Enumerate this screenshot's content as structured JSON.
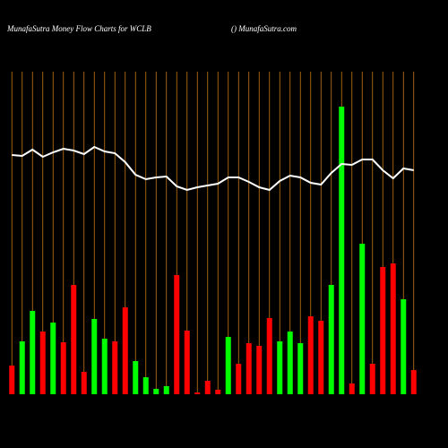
{
  "chart_data": {
    "type": "bar",
    "title": "MunafaSutra  Money Flow  Charts for WCLB",
    "subtitle": "() MunafaSutra.com",
    "ylim": [
      0,
      360
    ],
    "guide_color": "#c87814",
    "values": [
      32,
      59,
      93,
      70,
      80,
      58,
      122,
      25,
      84,
      62,
      59,
      97,
      37,
      19,
      6,
      9,
      133,
      71,
      2,
      15,
      5,
      64,
      34,
      57,
      54,
      85,
      59,
      70,
      57,
      87,
      82,
      122,
      321,
      12,
      168,
      34,
      142,
      146,
      106,
      27
    ],
    "colors": [
      "#ff0000",
      "#00ff00",
      "#00ff00",
      "#ff0000",
      "#00ff00",
      "#ff0000",
      "#ff0000",
      "#ff0000",
      "#00ff00",
      "#00ff00",
      "#ff0000",
      "#ff0000",
      "#00ff00",
      "#00ff00",
      "#00ff00",
      "#00ff00",
      "#ff0000",
      "#ff0000",
      "#ff0000",
      "#ff0000",
      "#ff0000",
      "#00ff00",
      "#ff0000",
      "#ff0000",
      "#ff0000",
      "#ff0000",
      "#00ff00",
      "#00ff00",
      "#00ff00",
      "#ff0000",
      "#ff0000",
      "#00ff00",
      "#00ff00",
      "#ff0000",
      "#00ff00",
      "#ff0000",
      "#ff0000",
      "#ff0000",
      "#00ff00",
      "#ff0000"
    ],
    "line": {
      "color": "#ffffff",
      "values": [
        267,
        266,
        273,
        265,
        270,
        274,
        272,
        268,
        276,
        271,
        269,
        259,
        245,
        240,
        242,
        243,
        232,
        228,
        231,
        233,
        235,
        242,
        242,
        237,
        231,
        228,
        238,
        244,
        242,
        236,
        234,
        247,
        257,
        256,
        262,
        262,
        250,
        241,
        252,
        250
      ]
    }
  }
}
